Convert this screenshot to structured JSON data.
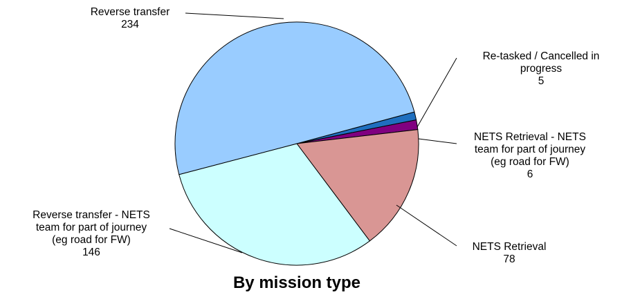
{
  "chart_data": {
    "type": "pie",
    "title": "By mission type",
    "legend": "none",
    "slices": [
      {
        "label": "Re-tasked / Cancelled in progress",
        "label_lines": [
          "Re-tasked / Cancelled in",
          "progress"
        ],
        "value": 5,
        "value_text": "5",
        "color": "#1F6FBF"
      },
      {
        "label": "NETS Retrieval - NETS team for part of journey (eg road for FW)",
        "label_lines": [
          "NETS Retrieval - NETS",
          "team for part of journey",
          "(eg road for FW)"
        ],
        "value": 6,
        "value_text": "6",
        "color": "#800080"
      },
      {
        "label": "NETS Retrieval",
        "label_lines": [
          "NETS Retrieval"
        ],
        "value": 78,
        "value_text": "78",
        "color": "#D99694"
      },
      {
        "label": "Reverse transfer - NETS team for part of journey (eg road for FW)",
        "label_lines": [
          "Reverse transfer - NETS",
          "team for part of journey",
          "(eg road for FW)"
        ],
        "value": 146,
        "value_text": "146",
        "color": "#CCFFFF"
      },
      {
        "label": "Reverse transfer",
        "label_lines": [
          "Reverse transfer"
        ],
        "value": 234,
        "value_text": "234",
        "color": "#99CCFF"
      }
    ]
  }
}
